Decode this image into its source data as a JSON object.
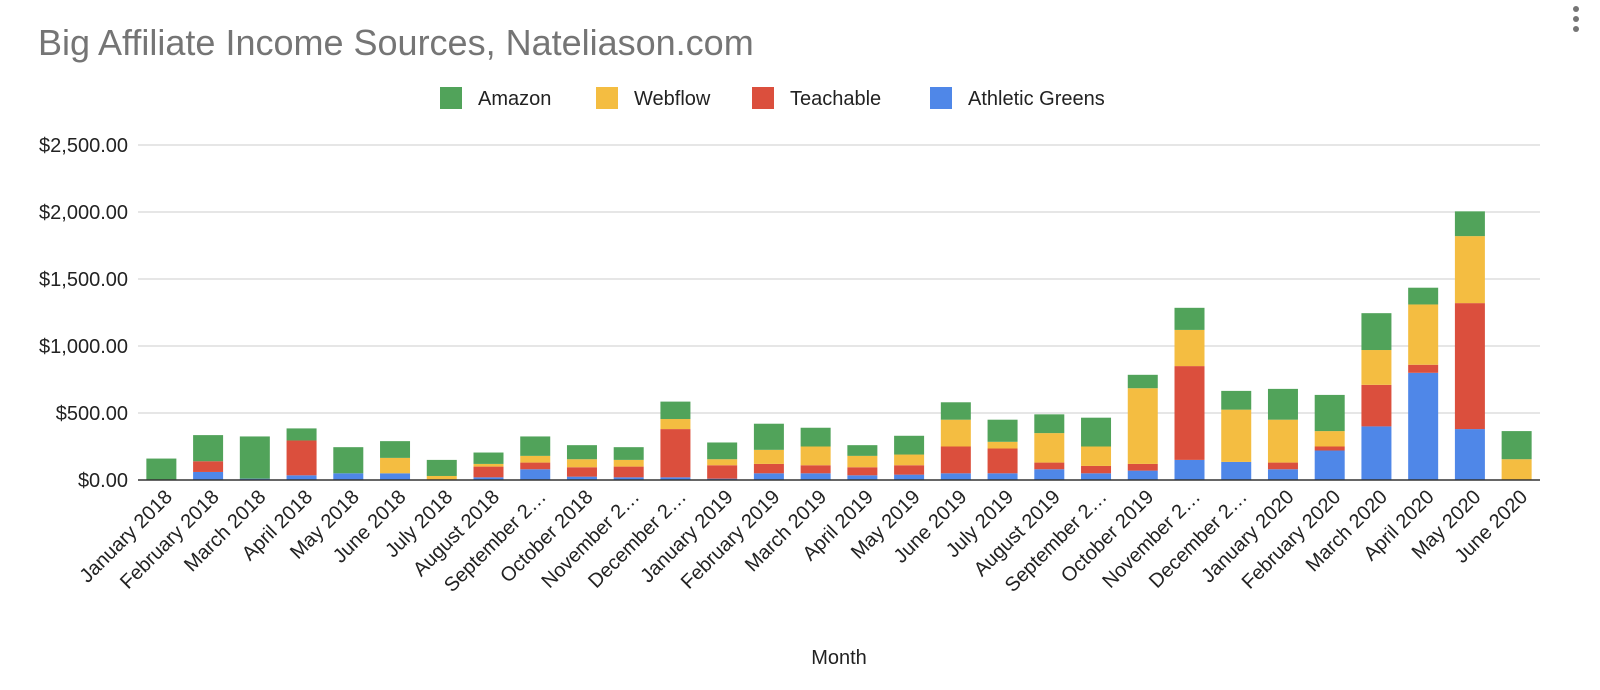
{
  "chart_data": {
    "type": "bar",
    "stacked": true,
    "title": "Big Affiliate Income Sources, Nateliason.com",
    "xlabel": "Month",
    "ylabel": "",
    "ylim": [
      0,
      2500
    ],
    "yticks": [
      "$0.00",
      "$500.00",
      "$1,000.00",
      "$1,500.00",
      "$2,000.00",
      "$2,500.00"
    ],
    "ytick_values": [
      0,
      500,
      1000,
      1500,
      2000,
      2500
    ],
    "grid": true,
    "legend_position": "top",
    "categories": [
      "January 2018",
      "February 2018",
      "March 2018",
      "April 2018",
      "May 2018",
      "June 2018",
      "July 2018",
      "August 2018",
      "September 2…",
      "October 2018",
      "November 2…",
      "December 2…",
      "January 2019",
      "February 2019",
      "March 2019",
      "April 2019",
      "May 2019",
      "June 2019",
      "July 2019",
      "August 2019",
      "September 2…",
      "October 2019",
      "November 2…",
      "December 2…",
      "January 2020",
      "February 2020",
      "March 2020",
      "April 2020",
      "May 2020",
      "June 2020"
    ],
    "series": [
      {
        "name": "Athletic Greens",
        "color": "#4f87e8",
        "values": [
          0,
          60,
          10,
          35,
          50,
          50,
          0,
          20,
          80,
          25,
          20,
          20,
          10,
          50,
          50,
          35,
          40,
          50,
          50,
          80,
          50,
          70,
          150,
          135,
          80,
          220,
          400,
          800,
          380,
          0
        ]
      },
      {
        "name": "Teachable",
        "color": "#db4f3d",
        "values": [
          0,
          80,
          0,
          260,
          0,
          0,
          0,
          80,
          50,
          70,
          80,
          360,
          100,
          70,
          60,
          60,
          70,
          200,
          185,
          50,
          55,
          50,
          700,
          0,
          50,
          30,
          310,
          60,
          940,
          0
        ]
      },
      {
        "name": "Webflow",
        "color": "#f4bd41",
        "values": [
          0,
          0,
          0,
          0,
          0,
          115,
          30,
          20,
          50,
          60,
          50,
          75,
          45,
          105,
          140,
          85,
          80,
          200,
          50,
          220,
          145,
          565,
          270,
          390,
          320,
          115,
          260,
          450,
          500,
          155
        ]
      },
      {
        "name": "Amazon",
        "color": "#51a35a",
        "values": [
          160,
          195,
          315,
          90,
          195,
          125,
          120,
          85,
          145,
          105,
          95,
          130,
          125,
          195,
          140,
          80,
          140,
          130,
          165,
          140,
          215,
          100,
          165,
          140,
          230,
          270,
          275,
          125,
          185,
          210
        ]
      }
    ],
    "legend_order": [
      "Amazon",
      "Webflow",
      "Teachable",
      "Athletic Greens"
    ]
  }
}
